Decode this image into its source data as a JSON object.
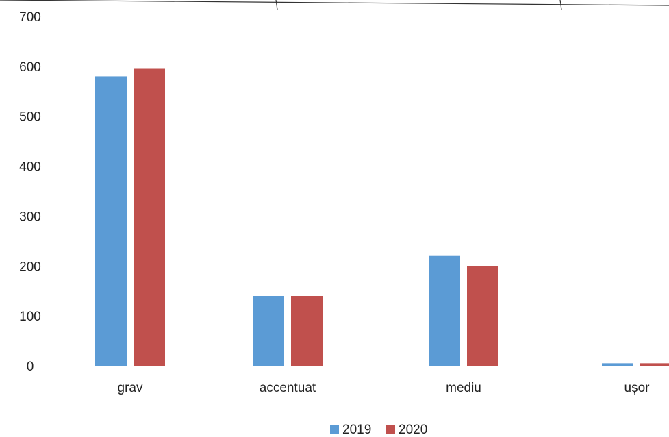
{
  "chart_data": {
    "type": "bar",
    "title": "",
    "xlabel": "",
    "ylabel": "",
    "categories": [
      "grav",
      "accentuat",
      "mediu",
      "ușor"
    ],
    "series": [
      {
        "name": "2019",
        "color": "#5B9BD5",
        "values": [
          580,
          140,
          220,
          5
        ]
      },
      {
        "name": "2020",
        "color": "#C0504D",
        "values": [
          595,
          140,
          200,
          5
        ]
      }
    ],
    "ylim": [
      0,
      700
    ],
    "yticks": [
      "0",
      "100",
      "200",
      "300",
      "400",
      "500",
      "600",
      "700"
    ],
    "grid": false,
    "legend_position": "bottom-center"
  }
}
